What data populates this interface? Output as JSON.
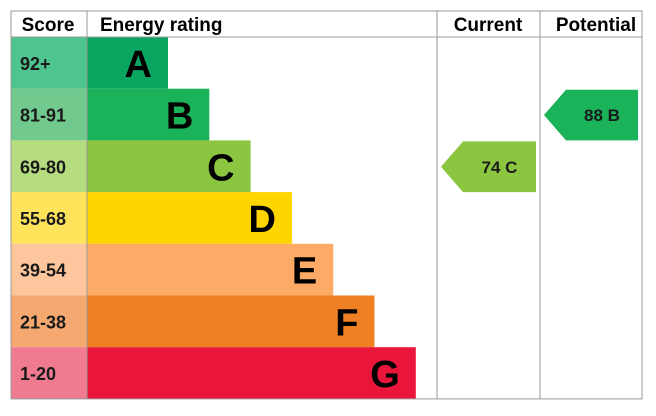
{
  "chart_data": {
    "type": "bar",
    "headers": {
      "score": "Score",
      "rating": "Energy rating",
      "current": "Current",
      "potential": "Potential"
    },
    "bands": [
      {
        "letter": "A",
        "range": "92+",
        "color": "#0aa561",
        "score_bg": "#4ec48e"
      },
      {
        "letter": "B",
        "range": "81-91",
        "color": "#1bb35a",
        "score_bg": "#72c98e"
      },
      {
        "letter": "C",
        "range": "69-80",
        "color": "#8cc640",
        "score_bg": "#b5dc7f"
      },
      {
        "letter": "D",
        "range": "55-68",
        "color": "#ffd500",
        "score_bg": "#ffe35b"
      },
      {
        "letter": "E",
        "range": "39-54",
        "color": "#fcaa65",
        "score_bg": "#fdc69d"
      },
      {
        "letter": "F",
        "range": "21-38",
        "color": "#ef8023",
        "score_bg": "#f5a971"
      },
      {
        "letter": "G",
        "range": "1-20",
        "color": "#e9153b",
        "score_bg": "#f07a90"
      }
    ],
    "current": {
      "value": 74,
      "letter": "C",
      "label": "74  C",
      "color": "#8cc640"
    },
    "potential": {
      "value": 88,
      "letter": "B",
      "label": "88  B",
      "color": "#1bb35a"
    }
  }
}
